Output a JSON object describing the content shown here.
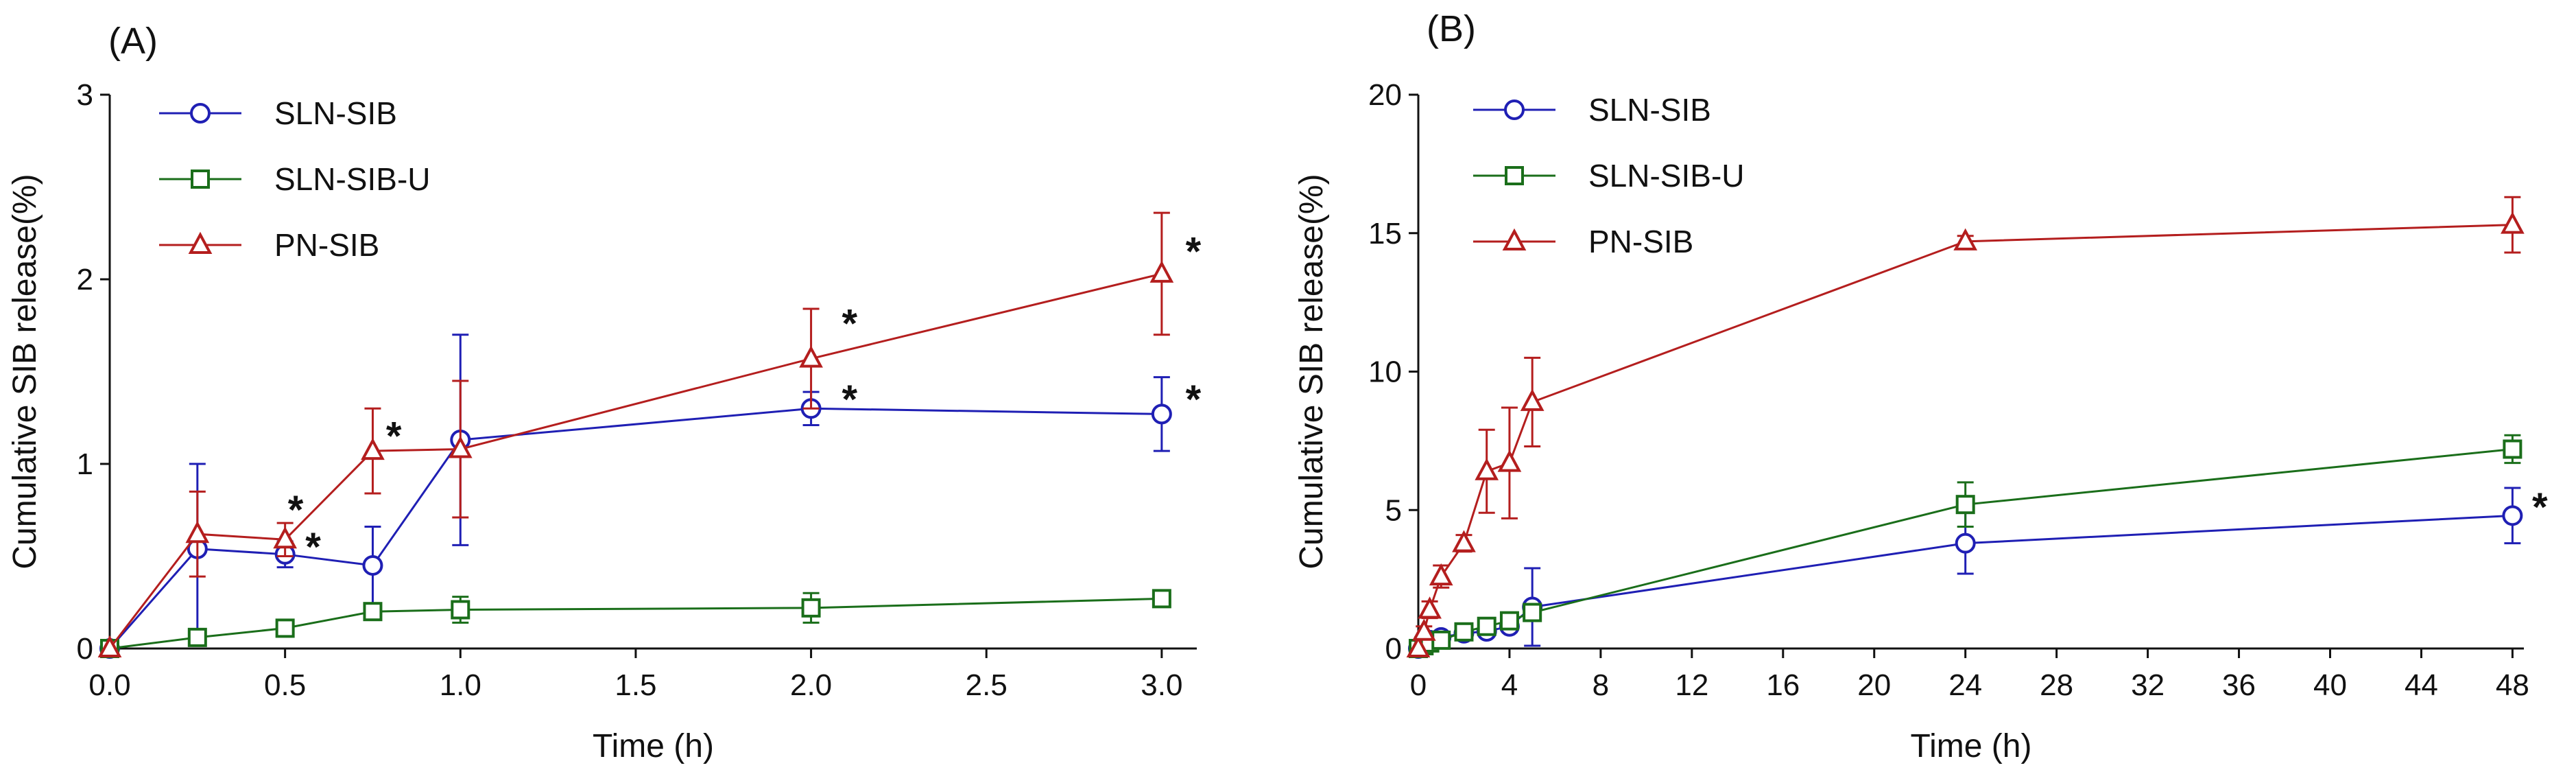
{
  "chart_data": [
    {
      "type": "line",
      "panel_label": "(A)",
      "xlabel": "Time (h)",
      "ylabel": "Cumulative SIB release(%)",
      "xlim": [
        0,
        3.1
      ],
      "ylim": [
        0,
        3
      ],
      "xticks": [
        0.0,
        0.5,
        1.0,
        1.5,
        2.0,
        2.5,
        3.0
      ],
      "xtick_labels": [
        "0.0",
        "0.5",
        "1.0",
        "1.5",
        "2.0",
        "2.5",
        "3.0"
      ],
      "yticks": [
        0,
        1,
        2,
        3
      ],
      "ytick_labels": [
        "0",
        "1",
        "2",
        "3"
      ],
      "legend_position": "top-left",
      "series": [
        {
          "name": "SLN-SIB",
          "color": "#1f1fb4",
          "marker": "circle",
          "x": [
            0,
            0.25,
            0.5,
            0.75,
            1.0,
            2.0,
            3.0
          ],
          "y": [
            0,
            0.54,
            0.51,
            0.45,
            1.13,
            1.3,
            1.27
          ],
          "err": [
            0,
            0.46,
            0.07,
            0.21,
            0.57,
            0.09,
            0.2
          ]
        },
        {
          "name": "SLN-SIB-U",
          "color": "#1a6e1a",
          "marker": "square",
          "x": [
            0,
            0.25,
            0.5,
            0.75,
            1.0,
            2.0,
            3.0
          ],
          "y": [
            0,
            0.06,
            0.11,
            0.2,
            0.21,
            0.22,
            0.27
          ],
          "err": [
            0,
            0.04,
            0.02,
            0.03,
            0.07,
            0.08,
            0.02
          ]
        },
        {
          "name": "PN-SIB",
          "color": "#b41e1e",
          "marker": "triangle",
          "x": [
            0,
            0.25,
            0.5,
            0.75,
            1.0,
            2.0,
            3.0
          ],
          "y": [
            0,
            0.62,
            0.59,
            1.07,
            1.08,
            1.57,
            2.03
          ],
          "err": [
            0,
            0.23,
            0.09,
            0.23,
            0.37,
            0.27,
            0.33
          ]
        }
      ],
      "annotations": [
        {
          "text": "*",
          "x": 0.53,
          "y": 0.78
        },
        {
          "text": "*",
          "x": 0.58,
          "y": 0.58
        },
        {
          "text": "*",
          "x": 0.81,
          "y": 1.18
        },
        {
          "text": "*",
          "x": 2.11,
          "y": 1.79
        },
        {
          "text": "*",
          "x": 2.11,
          "y": 1.38
        },
        {
          "text": "*",
          "x": 3.09,
          "y": 2.18
        },
        {
          "text": "*",
          "x": 3.09,
          "y": 1.38
        }
      ]
    },
    {
      "type": "line",
      "panel_label": "(B)",
      "xlabel": "Time (h)",
      "ylabel": "Cumulative SIB release(%)",
      "xlim": [
        0,
        48.5
      ],
      "ylim": [
        0,
        20
      ],
      "xticks": [
        0,
        4,
        8,
        12,
        16,
        20,
        24,
        28,
        32,
        36,
        40,
        44,
        48
      ],
      "xtick_labels": [
        "0",
        "4",
        "8",
        "12",
        "16",
        "20",
        "24",
        "28",
        "32",
        "36",
        "40",
        "44",
        "48"
      ],
      "yticks": [
        0,
        5,
        10,
        15,
        20
      ],
      "ytick_labels": [
        "0",
        "5",
        "10",
        "15",
        "20"
      ],
      "legend_position": "top-left",
      "series": [
        {
          "name": "SLN-SIB",
          "color": "#1f1fb4",
          "marker": "circle",
          "x": [
            0,
            0.25,
            0.5,
            1,
            2,
            3,
            4,
            5,
            24,
            48
          ],
          "y": [
            0,
            0.2,
            0.3,
            0.4,
            0.55,
            0.62,
            0.8,
            1.5,
            3.8,
            4.8
          ],
          "err": [
            0,
            0.05,
            0.05,
            0.1,
            0.1,
            0.15,
            0.2,
            1.4,
            1.1,
            1.0
          ]
        },
        {
          "name": "SLN-SIB-U",
          "color": "#1a6e1a",
          "marker": "square",
          "x": [
            0,
            0.25,
            0.5,
            1,
            2,
            3,
            4,
            5,
            24,
            48
          ],
          "y": [
            0,
            0.1,
            0.2,
            0.3,
            0.6,
            0.8,
            1.0,
            1.3,
            5.2,
            7.2
          ],
          "err": [
            0,
            0.05,
            0.05,
            0.05,
            0.1,
            0.1,
            0.15,
            0.3,
            0.8,
            0.5
          ]
        },
        {
          "name": "PN-SIB",
          "color": "#b41e1e",
          "marker": "triangle",
          "x": [
            0,
            0.25,
            0.5,
            1,
            2,
            3,
            4,
            5,
            24,
            48
          ],
          "y": [
            0,
            0.6,
            1.4,
            2.6,
            3.8,
            6.4,
            6.7,
            8.9,
            14.7,
            15.3
          ],
          "err": [
            0,
            0.2,
            0.3,
            0.4,
            0.3,
            1.5,
            2.0,
            1.6,
            0.2,
            1.0
          ]
        }
      ],
      "annotations": [
        {
          "text": "*",
          "x": 49.2,
          "y": 5.3
        }
      ]
    }
  ]
}
